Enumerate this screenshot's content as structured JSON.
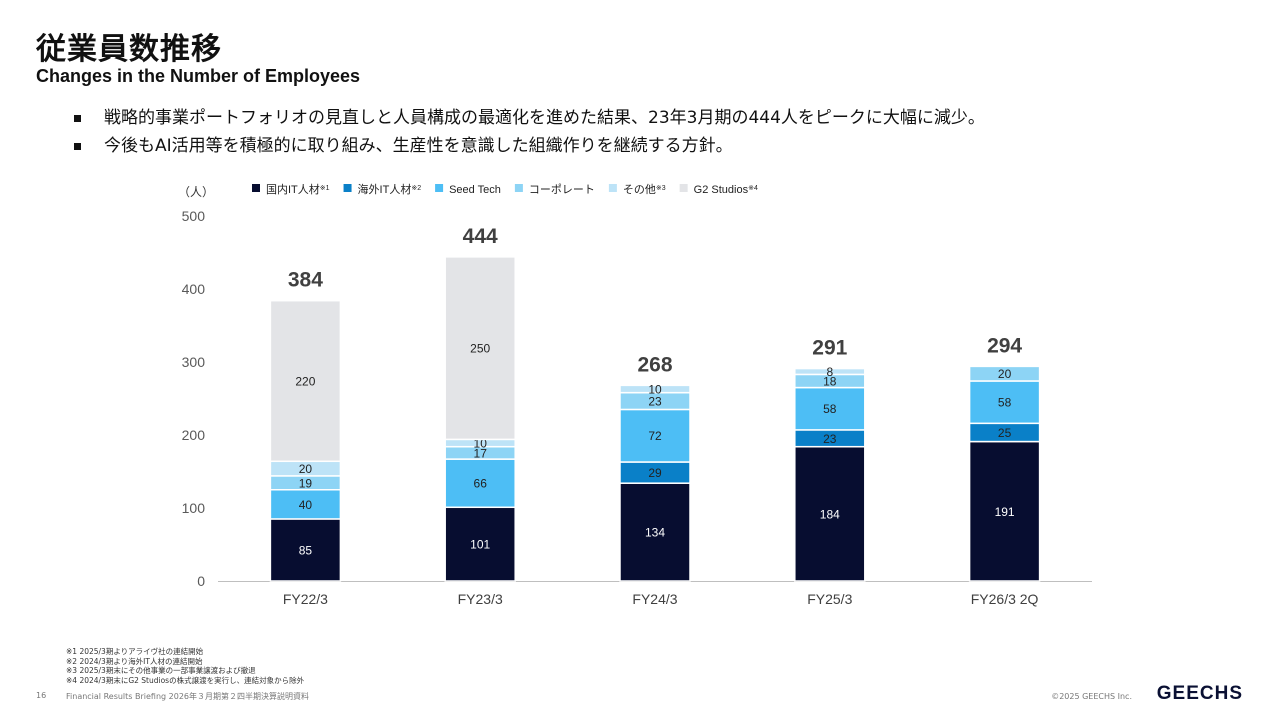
{
  "header": {
    "title_jp": "従業員数推移",
    "title_en": "Changes in the Number of Employees"
  },
  "bullets": [
    "戦略的事業ポートフォリオの見直しと人員構成の最適化を進めた結果、23年3月期の444人をピークに大幅に減少。",
    "今後もAI活用等を積極的に取り組み、生産性を意識した組織作りを継続する方針。"
  ],
  "chart_data": {
    "type": "bar",
    "stacked": true,
    "unit_label": "（人）",
    "categories": [
      "FY22/3",
      "FY23/3",
      "FY24/3",
      "FY25/3",
      "FY26/3 2Q"
    ],
    "ylim": [
      0,
      500
    ],
    "yticks": [
      0,
      100,
      200,
      300,
      400,
      500
    ],
    "legend_position": "top",
    "series": [
      {
        "name": "国内IT人材",
        "note": "※1",
        "color": "#070d30",
        "label_color": "#ffffff",
        "values": [
          85,
          101,
          134,
          184,
          191
        ]
      },
      {
        "name": "海外IT人材",
        "note": "※2",
        "color": "#0a80c8",
        "label_color": "#222222",
        "values": [
          0,
          0,
          29,
          23,
          25
        ]
      },
      {
        "name": "Seed Tech",
        "note": "",
        "color": "#4dbef5",
        "label_color": "#222222",
        "values": [
          40,
          66,
          72,
          58,
          58
        ]
      },
      {
        "name": "コーポレート",
        "note": "",
        "color": "#8dd4f5",
        "label_color": "#222222",
        "values": [
          19,
          17,
          23,
          18,
          20
        ]
      },
      {
        "name": "その他",
        "note": "※3",
        "color": "#bde3f7",
        "label_color": "#222222",
        "values": [
          20,
          10,
          10,
          8,
          0
        ]
      },
      {
        "name": "G2 Studios",
        "note": "※4",
        "color": "#e3e4e7",
        "label_color": "#222222",
        "values": [
          220,
          250,
          0,
          0,
          0
        ]
      }
    ],
    "totals": [
      384,
      444,
      268,
      291,
      294
    ]
  },
  "footnotes": [
    "※1 2025/3期よりアライヴ社の連結開始",
    "※2 2024/3期より海外IT人材の連結開始",
    "※3 2025/3期末にその他事業の一部事業譲渡および撤退",
    "※4 2024/3期末にG2 Studiosの株式譲渡を実行し、連結対象から除外"
  ],
  "footer": {
    "page": "16",
    "text": "Financial Results Briefing 2026年３月期第２四半期決算説明資料",
    "copyright": "©2025 GEECHS Inc.",
    "logo": "GEECHS"
  }
}
